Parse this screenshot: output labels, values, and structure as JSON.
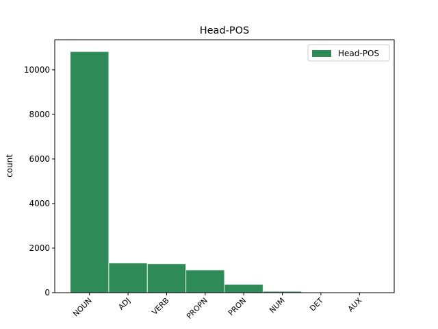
{
  "chart_data": {
    "type": "bar",
    "title": "Head-POS",
    "y_label": "count",
    "categories": [
      "NOUN",
      "ADJ",
      "VERB",
      "PROPN",
      "PRON",
      "NUM",
      "DET",
      "AUX"
    ],
    "series": [
      {
        "name": "Head-POS",
        "color": "#2e8b57",
        "values": [
          10820,
          1330,
          1300,
          1020,
          370,
          60,
          5,
          3
        ]
      }
    ],
    "ylim": [
      0,
      11350
    ],
    "yticks": [
      0,
      2000,
      4000,
      6000,
      8000,
      10000
    ],
    "legend": "upper right",
    "grid": false
  }
}
